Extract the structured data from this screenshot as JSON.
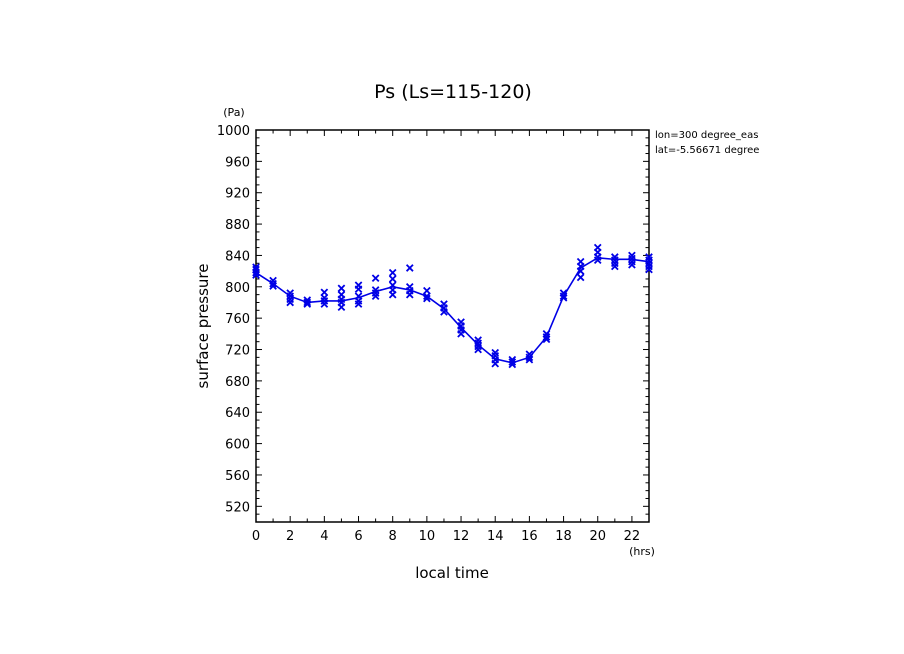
{
  "chart_data": {
    "type": "line",
    "title": "Ps (Ls=115-120)",
    "xlabel": "local time",
    "ylabel": "surface pressure",
    "x_unit": "(hrs)",
    "y_unit": "(Pa)",
    "annotations": [
      "lon=300 degree_eas",
      "lat=-5.56671 degree"
    ],
    "xlim": [
      0,
      23
    ],
    "ylim": [
      500,
      1000
    ],
    "x_ticks": [
      0,
      2,
      4,
      6,
      8,
      10,
      12,
      14,
      16,
      18,
      20,
      22
    ],
    "y_ticks": [
      520,
      560,
      600,
      640,
      680,
      720,
      760,
      800,
      840,
      880,
      920,
      960,
      1000
    ],
    "grid": false,
    "color": "#0000e6",
    "series": [
      {
        "style": "line",
        "x": [
          0,
          1,
          2,
          3,
          4,
          5,
          6,
          7,
          8,
          9,
          10,
          11,
          12,
          13,
          14,
          15,
          16,
          17,
          18,
          19,
          20,
          21,
          22,
          23
        ],
        "values": [
          818,
          804,
          788,
          780,
          782,
          782,
          786,
          794,
          800,
          796,
          788,
          772,
          748,
          726,
          708,
          703,
          710,
          736,
          788,
          824,
          837,
          835,
          835,
          832
        ]
      },
      {
        "style": "markers",
        "marker": "x",
        "points": [
          [
            0,
            825
          ],
          [
            0,
            822
          ],
          [
            0,
            818
          ],
          [
            0,
            815
          ],
          [
            1,
            808
          ],
          [
            1,
            804
          ],
          [
            1,
            801
          ],
          [
            2,
            792
          ],
          [
            2,
            788
          ],
          [
            2,
            784
          ],
          [
            2,
            780
          ],
          [
            3,
            783
          ],
          [
            3,
            780
          ],
          [
            3,
            778
          ],
          [
            4,
            793
          ],
          [
            4,
            786
          ],
          [
            4,
            782
          ],
          [
            4,
            778
          ],
          [
            5,
            798
          ],
          [
            5,
            790
          ],
          [
            5,
            784
          ],
          [
            5,
            780
          ],
          [
            5,
            774
          ],
          [
            6,
            802
          ],
          [
            6,
            797
          ],
          [
            6,
            788
          ],
          [
            6,
            782
          ],
          [
            6,
            778
          ],
          [
            7,
            811
          ],
          [
            7,
            796
          ],
          [
            7,
            792
          ],
          [
            7,
            788
          ],
          [
            8,
            818
          ],
          [
            8,
            810
          ],
          [
            8,
            802
          ],
          [
            8,
            796
          ],
          [
            8,
            790
          ],
          [
            9,
            824
          ],
          [
            9,
            800
          ],
          [
            9,
            795
          ],
          [
            9,
            790
          ],
          [
            10,
            795
          ],
          [
            10,
            788
          ],
          [
            10,
            785
          ],
          [
            11,
            778
          ],
          [
            11,
            773
          ],
          [
            11,
            768
          ],
          [
            12,
            755
          ],
          [
            12,
            750
          ],
          [
            12,
            745
          ],
          [
            12,
            740
          ],
          [
            13,
            732
          ],
          [
            13,
            728
          ],
          [
            13,
            724
          ],
          [
            13,
            720
          ],
          [
            14,
            716
          ],
          [
            14,
            712
          ],
          [
            14,
            707
          ],
          [
            14,
            702
          ],
          [
            15,
            707
          ],
          [
            15,
            704
          ],
          [
            15,
            701
          ],
          [
            16,
            714
          ],
          [
            16,
            710
          ],
          [
            16,
            707
          ],
          [
            17,
            740
          ],
          [
            17,
            736
          ],
          [
            17,
            733
          ],
          [
            18,
            792
          ],
          [
            18,
            788
          ],
          [
            18,
            786
          ],
          [
            19,
            832
          ],
          [
            19,
            826
          ],
          [
            19,
            820
          ],
          [
            19,
            812
          ],
          [
            20,
            850
          ],
          [
            20,
            844
          ],
          [
            20,
            838
          ],
          [
            20,
            834
          ],
          [
            21,
            838
          ],
          [
            21,
            834
          ],
          [
            21,
            830
          ],
          [
            21,
            826
          ],
          [
            22,
            840
          ],
          [
            22,
            836
          ],
          [
            22,
            832
          ],
          [
            22,
            828
          ],
          [
            23,
            838
          ],
          [
            23,
            834
          ],
          [
            23,
            830
          ],
          [
            23,
            826
          ],
          [
            23,
            822
          ]
        ]
      }
    ]
  }
}
